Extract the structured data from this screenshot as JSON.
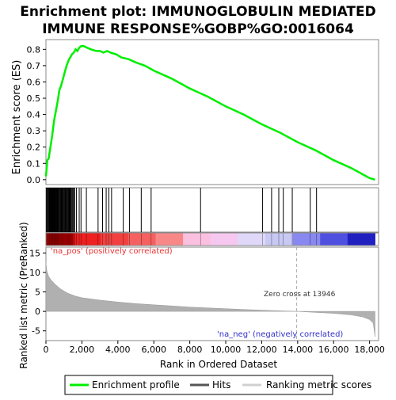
{
  "title_line1": "Enrichment plot: IMMUNOGLOBULIN MEDIATED",
  "title_line2": "IMMUNE RESPONSE%GOBP%GO:0016064",
  "es_ylabel": "Enrichment score (ES)",
  "metric_ylabel": "Ranked list metric (PreRanked)",
  "xlabel": "Rank in Ordered Dataset",
  "pos_label": "'na_pos' (positively correlated)",
  "neg_label": "'na_neg' (negatively correlated)",
  "zero_cross_label": "Zero cross at 13946",
  "legend": {
    "enrichment": "Enrichment profile",
    "hits": "Hits",
    "metric": "Ranking metric scores"
  },
  "colors": {
    "enrichment_line": "#00ee00",
    "hits": "#000000",
    "metric_fill": "#b0b0b0",
    "pos_label": "#ee3030",
    "neg_label": "#3030cc",
    "zero_line": "#aaaaaa"
  },
  "chart_data": {
    "type": "line",
    "x_ticks": [
      0,
      2000,
      4000,
      6000,
      8000,
      10000,
      12000,
      14000,
      16000,
      18000
    ],
    "x_tick_labels": [
      "0",
      "2,000",
      "4,000",
      "6,000",
      "8,000",
      "10,000",
      "12,000",
      "14,000",
      "16,000",
      "18,000"
    ],
    "xlim": [
      0,
      18500
    ],
    "es_ylim": [
      -0.03,
      0.86
    ],
    "es_ticks": [
      0.0,
      0.1,
      0.2,
      0.3,
      0.4,
      0.5,
      0.6,
      0.7,
      0.8
    ],
    "es_tick_labels": [
      "0.0",
      "0.1",
      "0.2",
      "0.3",
      "0.4",
      "0.5",
      "0.6",
      "0.7",
      "0.8"
    ],
    "enrichment_profile": {
      "x": [
        0,
        80,
        150,
        250,
        350,
        450,
        550,
        650,
        750,
        850,
        950,
        1050,
        1150,
        1250,
        1350,
        1450,
        1550,
        1650,
        1750,
        1850,
        1950,
        2100,
        2300,
        2500,
        2800,
        3000,
        3200,
        3400,
        3600,
        3900,
        4200,
        4600,
        5000,
        5500,
        6000,
        7000,
        8000,
        9000,
        10000,
        11000,
        12000,
        13000,
        14000,
        15000,
        16000,
        17000,
        18000,
        18300
      ],
      "y": [
        0.02,
        0.12,
        0.13,
        0.2,
        0.27,
        0.36,
        0.42,
        0.48,
        0.55,
        0.58,
        0.62,
        0.66,
        0.7,
        0.73,
        0.75,
        0.77,
        0.78,
        0.8,
        0.79,
        0.81,
        0.82,
        0.82,
        0.81,
        0.8,
        0.79,
        0.79,
        0.78,
        0.79,
        0.78,
        0.77,
        0.75,
        0.74,
        0.72,
        0.7,
        0.67,
        0.62,
        0.56,
        0.51,
        0.45,
        0.4,
        0.34,
        0.29,
        0.23,
        0.18,
        0.12,
        0.07,
        0.01,
        0.0
      ]
    },
    "hits": [
      30,
      60,
      100,
      140,
      180,
      210,
      240,
      270,
      300,
      330,
      360,
      390,
      420,
      450,
      480,
      510,
      540,
      570,
      600,
      630,
      660,
      690,
      720,
      760,
      800,
      840,
      880,
      920,
      960,
      1000,
      1040,
      1080,
      1120,
      1160,
      1200,
      1240,
      1280,
      1320,
      1360,
      1400,
      1450,
      1500,
      1550,
      1600,
      1700,
      1850,
      1950,
      2250,
      2900,
      3150,
      3350,
      3500,
      3650,
      4300,
      4650,
      5300,
      5850,
      8600,
      12050,
      12550,
      12950,
      13200,
      13700,
      14700,
      15050
    ],
    "metric_ylim": [
      -7.5,
      16.5
    ],
    "metric_ticks": [
      -5,
      0,
      5,
      10,
      15
    ],
    "metric_tick_labels": [
      "-5",
      "0",
      "5",
      "10",
      "15"
    ],
    "ranking_metric": {
      "x": [
        0,
        50,
        150,
        300,
        500,
        800,
        1200,
        1600,
        2000,
        3000,
        4000,
        5000,
        6000,
        7000,
        8000,
        9000,
        10000,
        11000,
        12000,
        13000,
        13946,
        15000,
        16000,
        17000,
        17600,
        18000,
        18200,
        18300
      ],
      "y": [
        12.5,
        10.5,
        9.0,
        8.0,
        7.0,
        5.8,
        4.7,
        4.0,
        3.5,
        2.9,
        2.4,
        2.0,
        1.7,
        1.4,
        1.1,
        0.9,
        0.7,
        0.5,
        0.3,
        0.15,
        0.0,
        -0.25,
        -0.5,
        -0.9,
        -1.4,
        -2.1,
        -3.0,
        -6.5
      ]
    },
    "zero_cross": 13946,
    "gradient_colors": [
      "#d80000",
      "#ee2020",
      "#f24040",
      "#f56060",
      "#f88888",
      "#fbc0e0",
      "#f6c8f0",
      "#e0d8f8",
      "#c8c8f4",
      "#8888f0",
      "#5050e0",
      "#2020c0"
    ]
  }
}
